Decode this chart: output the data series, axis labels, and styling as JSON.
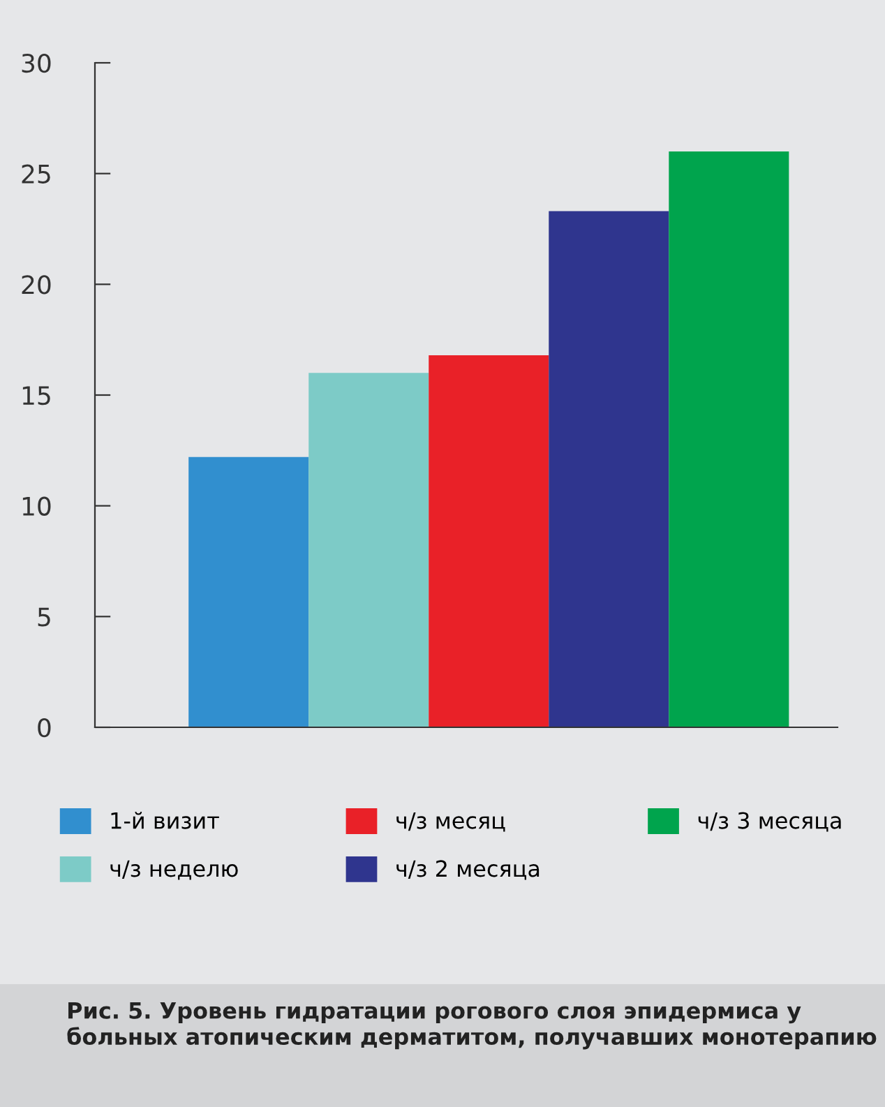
{
  "chart_data": {
    "type": "bar",
    "categories": [
      null
    ],
    "series": [
      {
        "name": "1-й визит",
        "color": "#318fcf",
        "values": [
          12.2
        ]
      },
      {
        "name": "ч/з неделю",
        "color": "#7dcbc7",
        "values": [
          16.0
        ]
      },
      {
        "name": "ч/з месяц",
        "color": "#e92128",
        "values": [
          16.8
        ]
      },
      {
        "name": "ч/з 2 месяца",
        "color": "#2f358e",
        "values": [
          23.3
        ]
      },
      {
        "name": "ч/з 3 месяца",
        "color": "#00a44d",
        "values": [
          26.0
        ]
      }
    ],
    "ylim": [
      0,
      30
    ],
    "yticks": [
      0,
      5,
      10,
      15,
      20,
      25,
      30
    ],
    "grid": false,
    "legend": "bottom",
    "annotations": [
      "Рис. 5. Уровень гидратации рогового слоя эпидермиса у больных атопическим дерматитом, получавших монотерапию"
    ]
  }
}
